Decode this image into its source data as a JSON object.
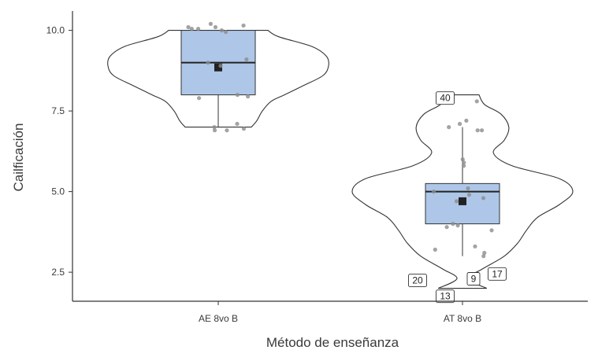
{
  "chart_data": {
    "type": "violin",
    "xlabel": "Método de enseñanza",
    "ylabel": "Cailficación",
    "categories": [
      "AE 8vo B",
      "AT 8vo B"
    ],
    "ylim": [
      1.6,
      10.6
    ],
    "yticks": [
      2.5,
      5.0,
      7.5,
      10.0
    ],
    "ytick_labels": [
      "2.5",
      "5.0",
      "7.5",
      "10.0"
    ],
    "grid": false,
    "colors": {
      "box_fill": "#aec7e8",
      "box_stroke": "#333333",
      "violin_stroke": "#333333",
      "points": "#8c8c8c",
      "mean_marker": "#222222"
    },
    "groups": [
      {
        "category": "AE 8vo B",
        "box": {
          "min": 7.0,
          "q1": 8.0,
          "median": 9.0,
          "q3": 10.0,
          "max": 10.0
        },
        "mean": 8.85,
        "violin_profile": [
          [
            7.0,
            0.3
          ],
          [
            7.2,
            0.35
          ],
          [
            7.5,
            0.4
          ],
          [
            7.8,
            0.48
          ],
          [
            8.0,
            0.6
          ],
          [
            8.3,
            0.78
          ],
          [
            8.6,
            0.95
          ],
          [
            8.9,
            1.0
          ],
          [
            9.2,
            0.98
          ],
          [
            9.5,
            0.85
          ],
          [
            9.8,
            0.55
          ],
          [
            10.0,
            0.45
          ]
        ],
        "points": [
          10.1,
          10.15,
          10.05,
          10.0,
          10.2,
          10.1,
          9.95,
          10.05,
          9.0,
          8.9,
          9.1,
          8.0,
          7.9,
          7.95,
          7.1,
          6.9,
          6.95,
          7.0,
          6.9
        ]
      },
      {
        "category": "AT 8vo B",
        "box": {
          "min": 3.0,
          "q1": 4.0,
          "median": 5.0,
          "q3": 5.25,
          "max": 7.0
        },
        "mean": 4.7,
        "outliers": [
          {
            "value": 2.0,
            "label": "20"
          },
          {
            "value": 1.9,
            "label": "13"
          },
          {
            "value": 2.1,
            "label": "9"
          },
          {
            "value": 2.3,
            "label": "17"
          },
          {
            "value": 7.9,
            "label": "40"
          }
        ],
        "violin_profile": [
          [
            2.0,
            0.22
          ],
          [
            2.3,
            0.05
          ],
          [
            2.6,
            0.18
          ],
          [
            3.0,
            0.38
          ],
          [
            3.4,
            0.5
          ],
          [
            3.8,
            0.58
          ],
          [
            4.2,
            0.68
          ],
          [
            4.6,
            0.88
          ],
          [
            5.0,
            1.0
          ],
          [
            5.4,
            0.88
          ],
          [
            5.8,
            0.45
          ],
          [
            6.2,
            0.28
          ],
          [
            6.6,
            0.38
          ],
          [
            7.0,
            0.42
          ],
          [
            7.4,
            0.35
          ],
          [
            7.7,
            0.2
          ],
          [
            8.0,
            0.15
          ]
        ],
        "points": [
          7.85,
          7.8,
          7.2,
          7.1,
          7.0,
          6.9,
          6.9,
          6.0,
          5.9,
          5.8,
          5.0,
          5.1,
          4.9,
          4.7,
          4.8,
          4.0,
          3.95,
          3.9,
          3.8,
          3.3,
          3.1,
          3.0,
          3.2
        ]
      }
    ]
  }
}
